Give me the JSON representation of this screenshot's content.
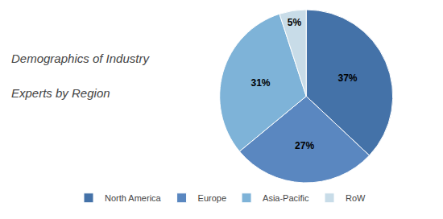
{
  "chart_data": {
    "type": "pie",
    "title": "Demographics of Industry",
    "subtitle": "Experts by Region",
    "categories": [
      "North America",
      "Europe",
      "Asia-Pacific",
      "RoW"
    ],
    "values": [
      37,
      27,
      31,
      5
    ],
    "value_labels": [
      "37%",
      "27%",
      "31%",
      "5%"
    ],
    "colors": [
      "#4472a8",
      "#5a87c0",
      "#7eb3d8",
      "#c8dce8"
    ],
    "data_labels": true,
    "legend": "bottom"
  }
}
